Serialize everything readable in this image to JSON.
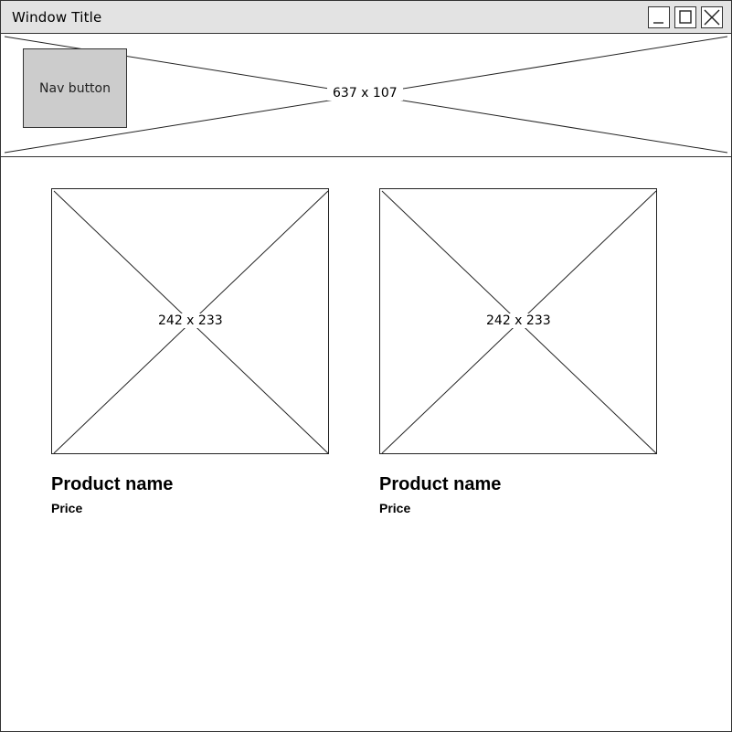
{
  "window": {
    "title": "Window Title",
    "controls": {
      "minimize_icon": "minimize-icon",
      "maximize_icon": "maximize-icon",
      "close_icon": "close-icon"
    }
  },
  "header": {
    "placeholder_label": "637 x 107",
    "nav_button_label": "Nav button"
  },
  "products": [
    {
      "image_label": "242 x 233",
      "name": "Product name",
      "price": "Price"
    },
    {
      "image_label": "242 x 233",
      "name": "Product name",
      "price": "Price"
    }
  ],
  "colors": {
    "titlebar": "#e3e3e3",
    "nav_button": "#cccccc",
    "border": "#333333"
  }
}
